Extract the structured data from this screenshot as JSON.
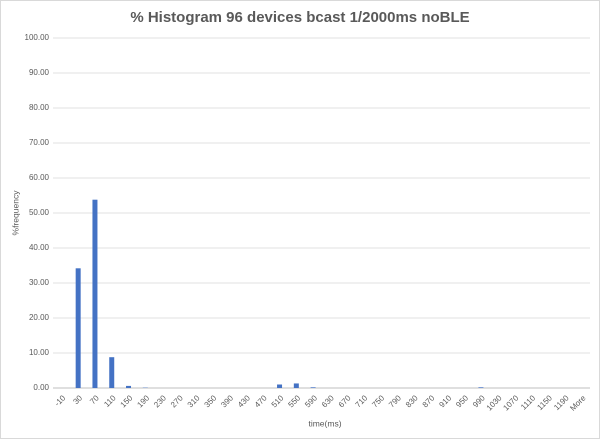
{
  "chart_data": {
    "type": "bar",
    "title": "% Histogram 96 devices bcast 1/2000ms noBLE",
    "x_label": "time(ms)",
    "y_label": "%frequency",
    "categories": [
      "-10",
      "30",
      "70",
      "110",
      "150",
      "190",
      "230",
      "270",
      "310",
      "350",
      "390",
      "430",
      "470",
      "510",
      "550",
      "590",
      "630",
      "670",
      "710",
      "750",
      "790",
      "830",
      "870",
      "910",
      "950",
      "990",
      "1030",
      "1070",
      "1110",
      "1150",
      "1190",
      "More"
    ],
    "values": [
      0,
      34.2,
      53.8,
      8.8,
      0.6,
      0.1,
      0,
      0,
      0,
      0,
      0,
      0,
      0,
      1.0,
      1.3,
      0.2,
      0,
      0,
      0,
      0,
      0,
      0,
      0,
      0,
      0,
      0.2,
      0,
      0,
      0,
      0,
      0,
      0
    ],
    "color": "#4472c4",
    "ylim": [
      0,
      100
    ],
    "yticks": [
      {
        "value": 0,
        "label": "0.00"
      },
      {
        "value": 10,
        "label": "10.00"
      },
      {
        "value": 20,
        "label": "20.00"
      },
      {
        "value": 30,
        "label": "30.00"
      },
      {
        "value": 40,
        "label": "40.00"
      },
      {
        "value": 50,
        "label": "50.00"
      },
      {
        "value": 60,
        "label": "60.00"
      },
      {
        "value": 70,
        "label": "70.00"
      },
      {
        "value": 80,
        "label": "80.00"
      },
      {
        "value": 90,
        "label": "90.00"
      },
      {
        "value": 100,
        "label": "100.00"
      }
    ],
    "grid": true
  }
}
